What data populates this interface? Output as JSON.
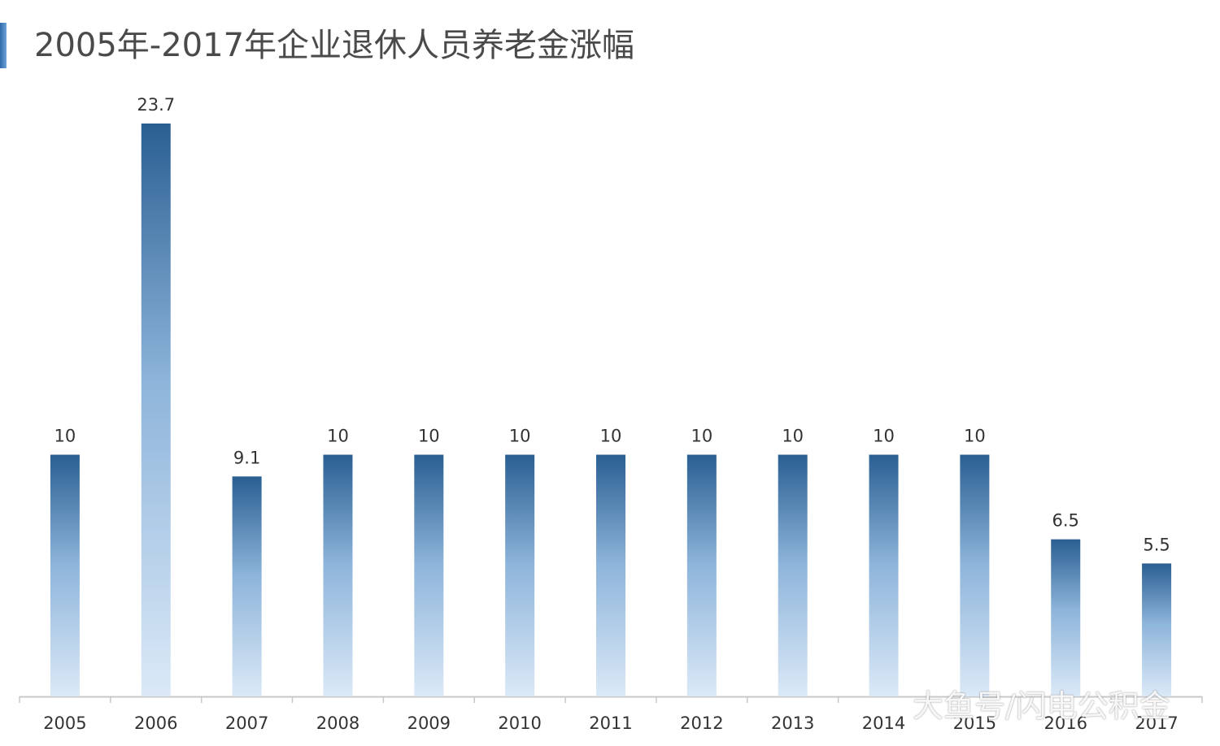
{
  "chart_data": {
    "type": "bar",
    "title": "2005年-2017年企业退休人员养老金涨幅",
    "categories": [
      "2005",
      "2006",
      "2007",
      "2008",
      "2009",
      "2010",
      "2011",
      "2012",
      "2013",
      "2014",
      "2015",
      "2016",
      "2017"
    ],
    "values": [
      10,
      23.7,
      9.1,
      10,
      10,
      10,
      10,
      10,
      10,
      10,
      10,
      6.5,
      5.5
    ],
    "data_labels": [
      "10",
      "23.7",
      "9.1",
      "10",
      "10",
      "10",
      "10",
      "10",
      "10",
      "10",
      "10",
      "6.5",
      "5.5"
    ],
    "xlabel": "",
    "ylabel": "",
    "ylim": [
      0,
      23.7
    ],
    "grid": false,
    "legend": "none",
    "colors": {
      "bar_top": "#2a5f92",
      "bar_mid": "#8db4da",
      "bar_bottom": "#d9e8f6",
      "axis": "#c8c8c8",
      "label_text": "#333333"
    }
  },
  "watermark": "大鱼号/闪电公积金"
}
